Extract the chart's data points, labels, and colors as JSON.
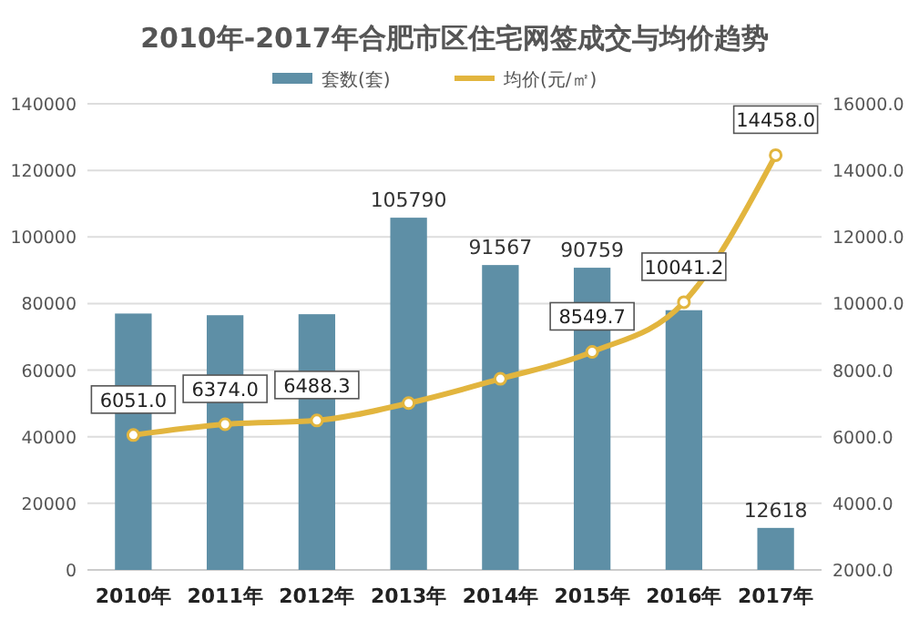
{
  "chart_data": {
    "type": "bar",
    "title": "2010年-2017年合肥市区住宅网签成交与均价趋势",
    "categories": [
      "2010年",
      "2011年",
      "2012年",
      "2013年",
      "2014年",
      "2015年",
      "2016年",
      "2017年"
    ],
    "series": [
      {
        "name": "套数(套)",
        "color": "#5e8fa6",
        "values": [
          77000,
          76500,
          76800,
          105790,
          91567,
          90759,
          78000,
          12618
        ],
        "value_labels": [
          null,
          null,
          null,
          "105790",
          "91567",
          "90759",
          null,
          "12618"
        ]
      },
      {
        "name": "均价(元/㎡)",
        "type": "line",
        "axis": "y2",
        "color": "#e2b53e",
        "values": [
          6051.0,
          6374.0,
          6488.3,
          7010,
          7740,
          8549.7,
          10041.2,
          14458.0
        ],
        "value_labels": [
          "6051.0",
          "6374.0",
          "6488.3",
          null,
          null,
          "8549.7",
          "10041.2",
          "14458.0"
        ]
      }
    ],
    "ylim": [
      0,
      140000
    ],
    "yticks": [
      0,
      20000,
      40000,
      60000,
      80000,
      100000,
      120000,
      140000
    ],
    "y2lim": [
      2000,
      16000
    ],
    "y2ticks": [
      {
        "value": 2000,
        "label": "2000.0"
      },
      {
        "value": 4000,
        "label": "4000.0"
      },
      {
        "value": 6000,
        "label": "6000.0"
      },
      {
        "value": 8000,
        "label": "8000.0"
      },
      {
        "value": 10000,
        "label": "10000.0"
      },
      {
        "value": 12000,
        "label": "12000.0"
      },
      {
        "value": 14000,
        "label": "14000.0"
      },
      {
        "value": 16000,
        "label": "16000.0"
      }
    ],
    "grid": "y",
    "legend": "top",
    "marker": "circle",
    "line_style": "solid"
  }
}
